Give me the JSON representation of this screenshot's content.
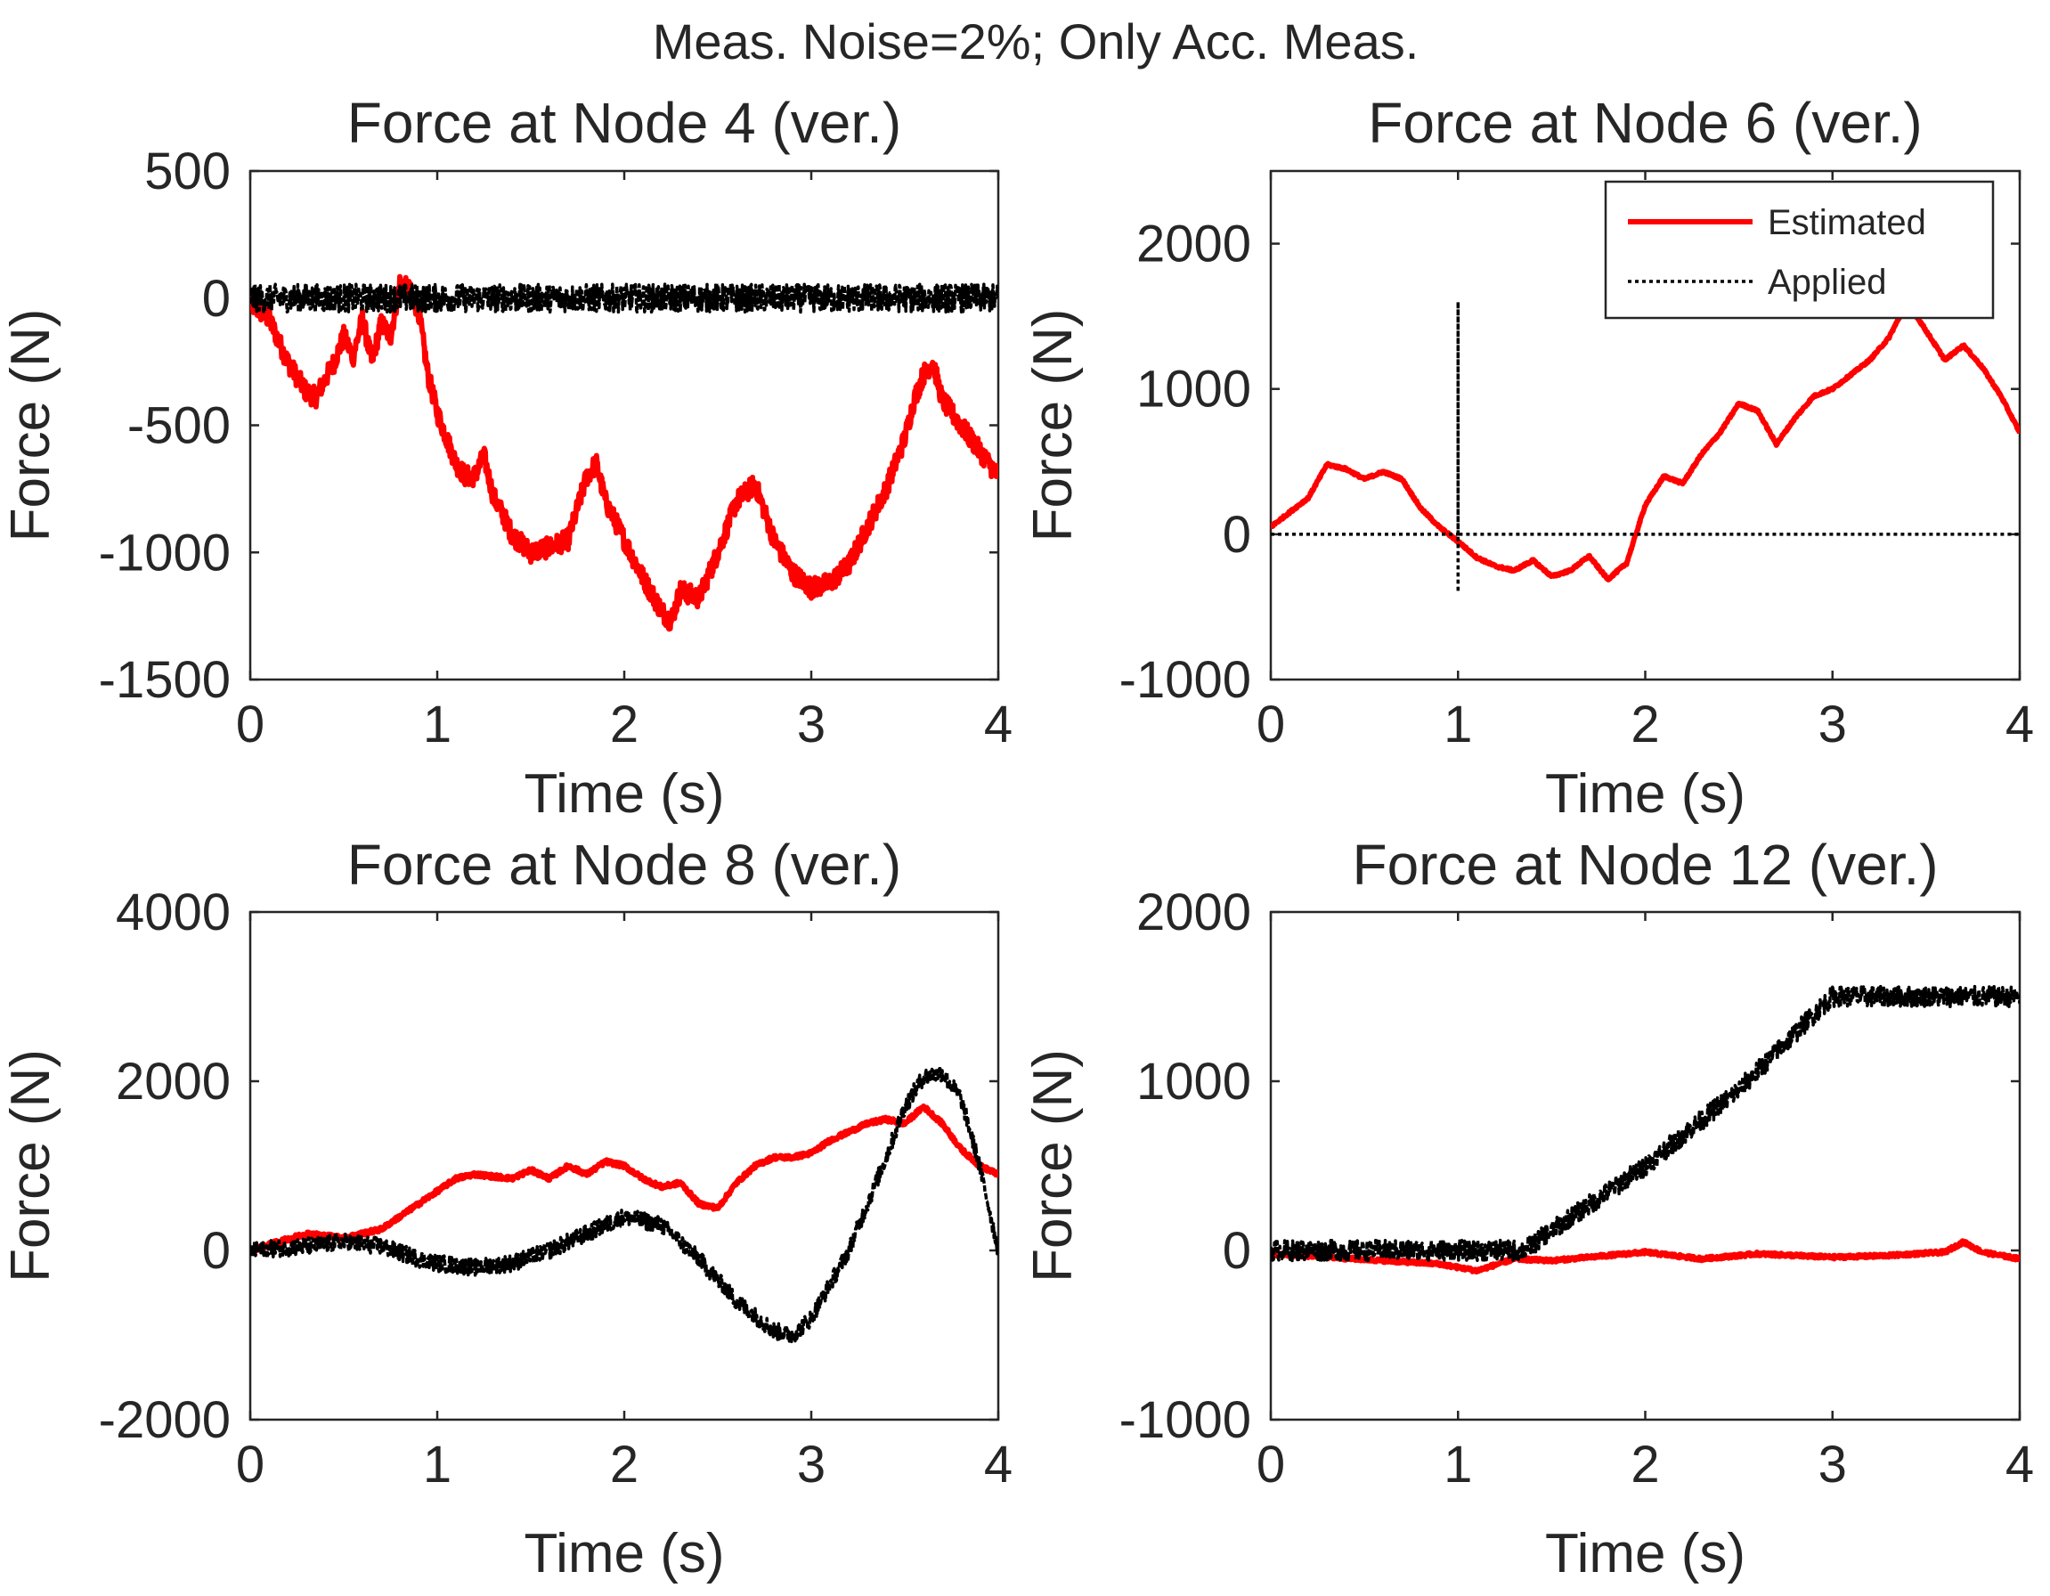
{
  "figure_title": "Meas. Noise=2%; Only Acc. Meas.",
  "legend": {
    "estimated": "Estimated",
    "applied": "Applied"
  },
  "colors": {
    "estimated": "#ff0000",
    "applied": "#000000",
    "axes": "#262626"
  },
  "chart_data": [
    {
      "type": "line",
      "title": "Force at Node 4 (ver.)",
      "xlabel": "Time (s)",
      "ylabel": "Force (N)",
      "xlim": [
        0,
        4
      ],
      "ylim": [
        -1500,
        500
      ],
      "xticks": [
        "0",
        "1",
        "2",
        "3",
        "4"
      ],
      "yticks": [
        "-1500",
        "-1000",
        "-500",
        "0",
        "500"
      ],
      "series": [
        {
          "name": "Estimated",
          "noise": 40,
          "x": [
            0,
            0.1,
            0.2,
            0.3,
            0.35,
            0.45,
            0.5,
            0.55,
            0.6,
            0.65,
            0.7,
            0.75,
            0.8,
            0.85,
            0.9,
            0.95,
            1.0,
            1.05,
            1.1,
            1.15,
            1.2,
            1.25,
            1.3,
            1.35,
            1.4,
            1.5,
            1.6,
            1.7,
            1.8,
            1.85,
            1.9,
            2.0,
            2.1,
            2.2,
            2.25,
            2.3,
            2.4,
            2.5,
            2.6,
            2.7,
            2.8,
            2.9,
            3.0,
            3.1,
            3.2,
            3.3,
            3.4,
            3.5,
            3.55,
            3.6,
            3.65,
            3.7,
            3.8,
            3.9,
            4.0
          ],
          "y": [
            -20,
            -80,
            -250,
            -370,
            -390,
            -250,
            -150,
            -230,
            -80,
            -250,
            -100,
            -150,
            60,
            30,
            -50,
            -300,
            -450,
            -550,
            -650,
            -700,
            -700,
            -620,
            -780,
            -850,
            -930,
            -1000,
            -980,
            -950,
            -700,
            -650,
            -800,
            -950,
            -1100,
            -1230,
            -1270,
            -1150,
            -1180,
            -1000,
            -800,
            -730,
            -950,
            -1080,
            -1140,
            -1120,
            -1050,
            -900,
            -750,
            -550,
            -400,
            -300,
            -250,
            -400,
            -500,
            -600,
            -700
          ]
        },
        {
          "name": "Applied",
          "noise": 55,
          "x": [
            0,
            4
          ],
          "y": [
            0,
            0
          ]
        }
      ]
    },
    {
      "type": "line",
      "title": "Force at Node 6 (ver.)",
      "xlabel": "Time (s)",
      "ylabel": "Force (N)",
      "xlim": [
        0,
        4
      ],
      "ylim": [
        -1000,
        2500
      ],
      "xticks": [
        "0",
        "1",
        "2",
        "3",
        "4"
      ],
      "yticks": [
        "-1000",
        "0",
        "1000",
        "2000"
      ],
      "legend_position": "top-right",
      "series": [
        {
          "name": "Estimated",
          "noise": 8,
          "x": [
            0,
            0.1,
            0.2,
            0.3,
            0.4,
            0.5,
            0.6,
            0.7,
            0.8,
            0.9,
            1.0,
            1.1,
            1.2,
            1.3,
            1.4,
            1.5,
            1.6,
            1.7,
            1.8,
            1.9,
            2.0,
            2.1,
            2.2,
            2.3,
            2.4,
            2.5,
            2.6,
            2.7,
            2.8,
            2.9,
            3.0,
            3.1,
            3.2,
            3.3,
            3.4,
            3.5,
            3.6,
            3.7,
            3.8,
            3.9,
            4.0
          ],
          "y": [
            50,
            150,
            250,
            480,
            450,
            380,
            430,
            380,
            180,
            50,
            -50,
            -160,
            -220,
            -250,
            -180,
            -290,
            -250,
            -150,
            -310,
            -200,
            200,
            400,
            350,
            550,
            700,
            900,
            850,
            620,
            800,
            950,
            1000,
            1100,
            1200,
            1350,
            1600,
            1400,
            1200,
            1300,
            1150,
            950,
            700
          ]
        },
        {
          "name": "Applied",
          "noise": 0,
          "x": [
            0,
            1,
            1,
            1,
            1,
            4
          ],
          "y": [
            0,
            0,
            1600,
            -400,
            0,
            0
          ]
        }
      ]
    },
    {
      "type": "line",
      "title": "Force at Node 8 (ver.)",
      "xlabel": "Time (s)",
      "ylabel": "Force (N)",
      "xlim": [
        0,
        4
      ],
      "ylim": [
        -2000,
        4000
      ],
      "xticks": [
        "0",
        "1",
        "2",
        "3",
        "4"
      ],
      "yticks": [
        "-2000",
        "0",
        "2000",
        "4000"
      ],
      "series": [
        {
          "name": "Estimated",
          "noise": 25,
          "x": [
            0,
            0.3,
            0.5,
            0.7,
            0.8,
            1.0,
            1.1,
            1.2,
            1.4,
            1.5,
            1.6,
            1.7,
            1.8,
            1.9,
            2.0,
            2.1,
            2.2,
            2.3,
            2.4,
            2.5,
            2.6,
            2.7,
            2.8,
            2.9,
            3.0,
            3.1,
            3.2,
            3.3,
            3.4,
            3.5,
            3.6,
            3.7,
            3.8,
            3.9,
            4.0
          ],
          "y": [
            0,
            200,
            150,
            250,
            400,
            700,
            850,
            900,
            850,
            950,
            850,
            1000,
            900,
            1050,
            1000,
            850,
            750,
            800,
            550,
            500,
            800,
            1000,
            1100,
            1100,
            1150,
            1300,
            1400,
            1500,
            1550,
            1500,
            1700,
            1500,
            1200,
            1000,
            900
          ]
        },
        {
          "name": "Applied",
          "noise": 100,
          "x": [
            0,
            0.3,
            0.5,
            0.7,
            0.9,
            1.0,
            1.2,
            1.4,
            1.6,
            1.8,
            2.0,
            2.2,
            2.4,
            2.6,
            2.8,
            2.9,
            3.0,
            3.2,
            3.4,
            3.5,
            3.6,
            3.7,
            3.8,
            3.9,
            4.0
          ],
          "y": [
            0,
            50,
            100,
            50,
            -100,
            -150,
            -200,
            -150,
            0,
            200,
            400,
            300,
            -100,
            -600,
            -950,
            -1000,
            -800,
            0,
            1100,
            1700,
            2050,
            2100,
            1800,
            1000,
            0
          ]
        }
      ]
    },
    {
      "type": "line",
      "title": "Force at Node 12 (ver.)",
      "xlabel": "Time (s)",
      "ylabel": "Force (N)",
      "xlim": [
        0,
        4
      ],
      "ylim": [
        -1000,
        2000
      ],
      "xticks": [
        "0",
        "1",
        "2",
        "3",
        "4"
      ],
      "yticks": [
        "-1000",
        "0",
        "1000",
        "2000"
      ],
      "series": [
        {
          "name": "Estimated",
          "noise": 10,
          "x": [
            0,
            0.3,
            0.6,
            0.9,
            1.1,
            1.3,
            1.5,
            1.8,
            2.0,
            2.3,
            2.6,
            2.8,
            3.0,
            3.3,
            3.6,
            3.7,
            3.8,
            4.0
          ],
          "y": [
            -20,
            -40,
            -60,
            -80,
            -120,
            -50,
            -60,
            -30,
            -10,
            -50,
            -20,
            -30,
            -40,
            -30,
            -10,
            50,
            -10,
            -50
          ]
        },
        {
          "name": "Applied",
          "noise": 60,
          "x": [
            0,
            1.0,
            1.35,
            2.0,
            2.5,
            2.95,
            3.0,
            3.5,
            4.0
          ],
          "y": [
            0,
            0,
            0,
            500,
            950,
            1450,
            1500,
            1500,
            1500
          ]
        }
      ]
    }
  ]
}
